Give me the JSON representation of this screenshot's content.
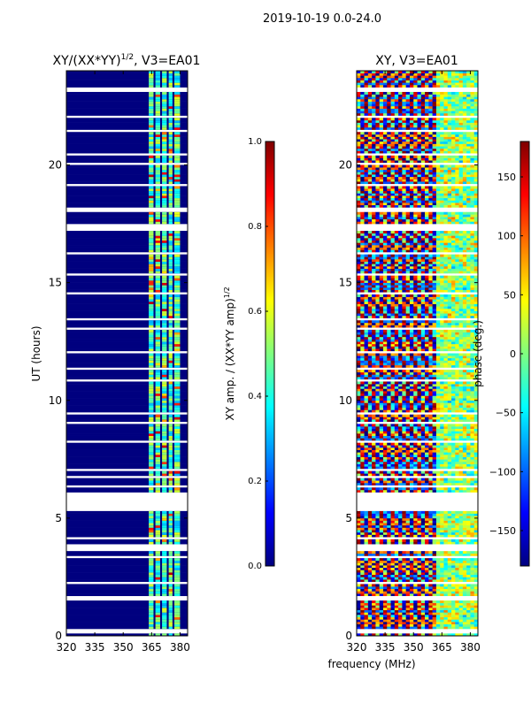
{
  "suptitle": "2019-10-19 0.0-24.0",
  "colors": {
    "jet": [
      "#00007f",
      "#0000ff",
      "#007fff",
      "#00ffff",
      "#7fff7f",
      "#ffff00",
      "#ff7f00",
      "#ff0000",
      "#7f0000"
    ]
  },
  "chart_data": [
    {
      "type": "heatmap",
      "title": "XY/(XX*YY)^{1/2}, V3=EA01",
      "title_main": "XY/(XX*YY)",
      "title_sup": "1/2",
      "title_tail": ", V3=EA01",
      "xlabel": "",
      "ylabel": "UT (hours)",
      "xlim": [
        320,
        384
      ],
      "ylim": [
        0,
        24
      ],
      "xticks": [
        "320",
        "335",
        "350",
        "365",
        "380"
      ],
      "yticks": [
        "0",
        "5",
        "10",
        "15",
        "20"
      ],
      "colorbar": {
        "label": "XY amp. / (XX*YY amp)^{1/2}",
        "label_main": "XY amp. / (XX*YY amp)",
        "label_sup": "1/2",
        "range": [
          0.0,
          1.0
        ],
        "ticks": [
          "0.0",
          "0.2",
          "0.4",
          "0.6",
          "0.8",
          "1.0"
        ]
      },
      "blank_ut_bands": [
        [
          0.15,
          0.3
        ],
        [
          0.6,
          0.65
        ],
        [
          1.55,
          1.7
        ],
        [
          2.2,
          2.3
        ],
        [
          3.3,
          3.4
        ],
        [
          3.65,
          3.9
        ],
        [
          4.15,
          4.25
        ],
        [
          5.35,
          6.1
        ],
        [
          6.35,
          6.45
        ],
        [
          6.75,
          6.85
        ],
        [
          7.05,
          7.15
        ],
        [
          8.2,
          8.3
        ],
        [
          9.0,
          9.1
        ],
        [
          9.4,
          9.5
        ],
        [
          10.85,
          10.95
        ],
        [
          11.3,
          11.4
        ],
        [
          12.0,
          12.1
        ],
        [
          13.0,
          13.1
        ],
        [
          13.45,
          13.55
        ],
        [
          14.5,
          14.6
        ],
        [
          15.3,
          15.4
        ],
        [
          16.25,
          16.35
        ],
        [
          17.2,
          17.5
        ],
        [
          18.0,
          18.25
        ],
        [
          19.15,
          19.25
        ],
        [
          20.0,
          20.1
        ],
        [
          20.45,
          20.55
        ],
        [
          21.45,
          21.55
        ],
        [
          22.0,
          22.1
        ],
        [
          23.1,
          23.3
        ],
        [
          23.7,
          23.75
        ]
      ],
      "rfi_channels_mhz": [
        [
          363.5,
          366.0
        ],
        [
          367.0,
          369.5
        ],
        [
          370.5,
          373.0
        ],
        [
          374.0,
          376.0
        ],
        [
          377.0,
          380.0
        ]
      ]
    },
    {
      "type": "heatmap",
      "title": "XY, V3=EA01",
      "xlabel": "frequency (MHz)",
      "ylabel": "",
      "xlim": [
        320,
        384
      ],
      "ylim": [
        0,
        24
      ],
      "xticks": [
        "320",
        "335",
        "350",
        "365",
        "380"
      ],
      "yticks": [
        "0",
        "5",
        "10",
        "15",
        "20"
      ],
      "colorbar": {
        "label": "phase (deg.)",
        "range": [
          -180,
          180
        ],
        "ticks": [
          "150",
          "100",
          "50",
          "0",
          "−50",
          "−100",
          "−150"
        ],
        "tick_values": [
          150,
          100,
          50,
          0,
          -50,
          -100,
          -150
        ]
      },
      "blank_ut_bands": [
        [
          0.15,
          0.3
        ],
        [
          0.6,
          0.65
        ],
        [
          1.55,
          1.7
        ],
        [
          2.2,
          2.3
        ],
        [
          3.3,
          3.4
        ],
        [
          3.65,
          3.9
        ],
        [
          4.15,
          4.25
        ],
        [
          5.35,
          6.1
        ],
        [
          6.35,
          6.45
        ],
        [
          6.75,
          6.85
        ],
        [
          7.05,
          7.15
        ],
        [
          8.2,
          8.3
        ],
        [
          9.0,
          9.1
        ],
        [
          9.4,
          9.5
        ],
        [
          10.85,
          10.95
        ],
        [
          11.3,
          11.4
        ],
        [
          12.0,
          12.1
        ],
        [
          13.0,
          13.1
        ],
        [
          13.45,
          13.55
        ],
        [
          14.5,
          14.6
        ],
        [
          15.3,
          15.4
        ],
        [
          16.25,
          16.35
        ],
        [
          17.2,
          17.5
        ],
        [
          18.0,
          18.25
        ],
        [
          19.15,
          19.25
        ],
        [
          20.0,
          20.1
        ],
        [
          20.45,
          20.55
        ],
        [
          21.45,
          21.55
        ],
        [
          22.0,
          22.1
        ],
        [
          23.1,
          23.3
        ],
        [
          23.7,
          23.75
        ]
      ],
      "phase_stripe_period_mhz": 6
    }
  ]
}
